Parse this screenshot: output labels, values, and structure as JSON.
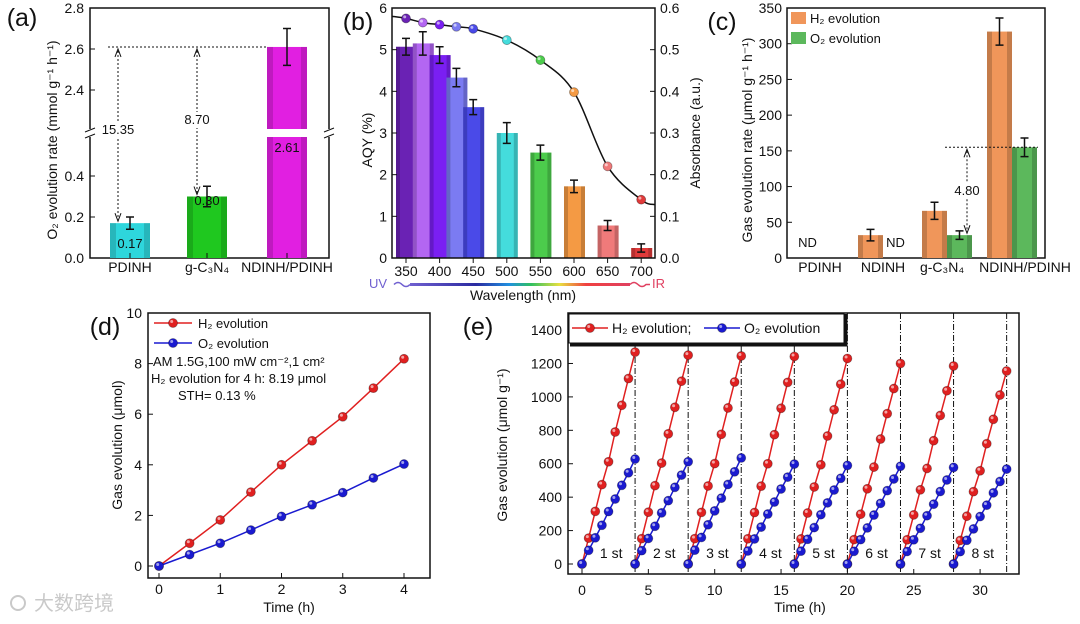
{
  "watermark": "大数跨境",
  "chart_data": [
    {
      "panel": "(a)",
      "type": "bar",
      "ylabel": "O₂ evolution rate (mmol g⁻¹ h⁻¹)",
      "categories": [
        "PDINH",
        "g-C₃N₄",
        "NDINH/PDINH"
      ],
      "values": [
        0.17,
        0.3,
        2.61
      ],
      "errors": [
        0.03,
        0.05,
        0.09
      ],
      "value_labels": [
        "0.17",
        "0.30",
        "2.61"
      ],
      "colors": [
        "#2ed6dc",
        "#1fc81f",
        "#e11fe1"
      ],
      "y_ticks_lower": [
        "0.0",
        "0.2",
        "0.4"
      ],
      "y_ticks_upper": [
        "2.4",
        "2.6",
        "2.8"
      ],
      "ylim_lower": [
        0,
        0.6
      ],
      "ylim_upper": [
        2.2,
        2.8
      ],
      "annotations": [
        "15.35",
        "8.70"
      ]
    },
    {
      "panel": "(b)",
      "type": "bar+line",
      "xlabel": "Wavelength (nm)",
      "ylabel": "AQY (%)",
      "ylabel_right": "Absorbance (a.u.)",
      "wavelengths": [
        350,
        375,
        400,
        425,
        450,
        500,
        550,
        600,
        650,
        700
      ],
      "aqy": [
        5.07,
        5.15,
        4.87,
        4.33,
        3.62,
        3.0,
        2.53,
        1.72,
        0.78,
        0.24
      ],
      "aqy_errors": [
        0.2,
        0.28,
        0.2,
        0.22,
        0.18,
        0.25,
        0.18,
        0.15,
        0.12,
        0.1
      ],
      "absorbance": [
        0.575,
        0.565,
        0.56,
        0.555,
        0.55,
        0.523,
        0.475,
        0.398,
        0.22,
        0.14
      ],
      "colors": [
        "#6a22b4",
        "#b366f2",
        "#7a1ff2",
        "#7b7bf2",
        "#4a4ae8",
        "#44dcdc",
        "#4ccc4c",
        "#f49a44",
        "#f07a7a",
        "#e03a3a"
      ],
      "x_ticks": [
        "350",
        "400",
        "450",
        "500",
        "550",
        "600",
        "650",
        "700"
      ],
      "y_ticks": [
        "0",
        "1",
        "2",
        "3",
        "4",
        "5",
        "6"
      ],
      "y_ticks_right": [
        "0.0",
        "0.1",
        "0.2",
        "0.3",
        "0.4",
        "0.5",
        "0.6"
      ],
      "ylim": [
        0,
        6
      ],
      "ylim_right": [
        0,
        0.6
      ],
      "spectrum_labels": [
        "UV",
        "IR"
      ]
    },
    {
      "panel": "(c)",
      "type": "grouped-bar",
      "ylabel": "Gas evolution rate (μmol g⁻¹ h⁻¹)",
      "categories": [
        "PDINH",
        "NDINH",
        "g-C₃N₄",
        "NDINH/PDINH"
      ],
      "series": [
        {
          "name": "H₂ evolution",
          "values": [
            null,
            32,
            66,
            317
          ],
          "errors": [
            0,
            8,
            12,
            19
          ],
          "color": "#f0965a"
        },
        {
          "name": "O₂ evolution",
          "values": [
            null,
            null,
            32,
            155
          ],
          "errors": [
            0,
            0,
            6,
            13
          ],
          "color": "#5cb85c"
        }
      ],
      "nd_label": "ND",
      "y_ticks": [
        "0",
        "50",
        "100",
        "150",
        "200",
        "250",
        "300",
        "350"
      ],
      "ylim": [
        0,
        350
      ],
      "annotation": "4.80"
    },
    {
      "panel": "(d)",
      "type": "line",
      "xlabel": "Time (h)",
      "ylabel": "Gas evolution (μmol)",
      "x": [
        0,
        0.5,
        1,
        1.5,
        2,
        2.5,
        3,
        3.5,
        4
      ],
      "series": [
        {
          "name": "H₂ evolution",
          "values": [
            0,
            0.9,
            1.82,
            2.92,
            4.0,
            4.95,
            5.9,
            7.03,
            8.19
          ],
          "color": "#e02020"
        },
        {
          "name": "O₂ evolution",
          "values": [
            0,
            0.45,
            0.9,
            1.42,
            1.96,
            2.42,
            2.9,
            3.48,
            4.03
          ],
          "color": "#1a1ad0"
        }
      ],
      "x_ticks": [
        "0",
        "1",
        "2",
        "3",
        "4"
      ],
      "y_ticks": [
        "0",
        "2",
        "4",
        "6",
        "8",
        "10"
      ],
      "xlim": [
        0,
        4
      ],
      "ylim": [
        0,
        10
      ],
      "notes": [
        "AM 1.5G,100 mW cm⁻²,1 cm²",
        "H₂ evolution for 4 h: 8.19  μmol",
        "STH= 0.13 %"
      ]
    },
    {
      "panel": "(e)",
      "type": "line",
      "xlabel": "Time (h)",
      "ylabel": "Gas evolution (μmol g⁻¹)",
      "cycle_hours": 4,
      "cycle_x": [
        0,
        0.5,
        1,
        1.5,
        2,
        2.5,
        3,
        3.5,
        4
      ],
      "series": [
        {
          "name": "H₂ evolution;",
          "color": "#e02020",
          "cycles": [
            [
              0,
              155,
              315,
              475,
              612,
              790,
              950,
              1110,
              1268
            ],
            [
              0,
              152,
              310,
              469,
              604,
              779,
              938,
              1094,
              1250
            ],
            [
              0,
              152,
              309,
              467,
              601,
              776,
              934,
              1089,
              1245
            ],
            [
              0,
              151,
              308,
              466,
              600,
              774,
              932,
              1087,
              1242
            ],
            [
              0,
              150,
              305,
              461,
              594,
              766,
              923,
              1076,
              1230
            ],
            [
              0,
              146,
              298,
              450,
              580,
              748,
              900,
              1050,
              1200
            ],
            [
              0,
              145,
              294,
              444,
              572,
              738,
              889,
              1037,
              1185
            ],
            [
              0,
              141,
              286,
              433,
              558,
              720,
              866,
              1011,
              1155
            ]
          ]
        },
        {
          "name": "O₂ evolution",
          "color": "#1a1ad0",
          "cycles": [
            [
              0,
              82,
              157,
              232,
              314,
              389,
              471,
              546,
              628
            ],
            [
              0,
              80,
              153,
              226,
              306,
              379,
              459,
              532,
              612
            ],
            [
              0,
              83,
              159,
              235,
              318,
              394,
              476,
              552,
              635
            ],
            [
              0,
              78,
              150,
              221,
              299,
              371,
              449,
              520,
              598
            ],
            [
              0,
              77,
              148,
              218,
              295,
              366,
              443,
              513,
              590
            ],
            [
              0,
              76,
              146,
              216,
              293,
              363,
              439,
              509,
              585
            ],
            [
              0,
              75,
              145,
              214,
              289,
              358,
              434,
              503,
              578
            ],
            [
              0,
              74,
              142,
              210,
              284,
              352,
              426,
              494,
              568
            ]
          ]
        }
      ],
      "cycle_labels": [
        "1 st",
        "2 st",
        "3 st",
        "4 st",
        "5 st",
        "6 st",
        "7 st",
        "8 st"
      ],
      "x_ticks": [
        "0",
        "5",
        "10",
        "15",
        "20",
        "25",
        "30"
      ],
      "y_ticks": [
        "0",
        "200",
        "400",
        "600",
        "800",
        "1000",
        "1200",
        "1400"
      ],
      "xlim": [
        -1,
        33
      ],
      "ylim": [
        0,
        1400
      ]
    }
  ]
}
